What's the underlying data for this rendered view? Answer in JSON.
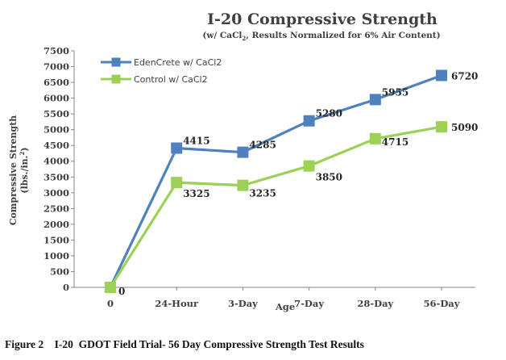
{
  "chart_data": {
    "type": "line",
    "title": "I-20 Compressive Strength",
    "subtitle_pre": "(w/ CaCl",
    "subtitle_sub": "2",
    "subtitle_post": ", Results Normalized for 6% Air Content)",
    "xlabel": "Age",
    "ylabel_line1": "Compressive Strength",
    "ylabel_line2_pre": "(lbs./in.",
    "ylabel_line2_sup": "2",
    "ylabel_line2_post": ")",
    "categories": [
      "0",
      "24-Hour",
      "3-Day",
      "7-Day",
      "28-Day",
      "56-Day"
    ],
    "ylim": [
      0,
      7500
    ],
    "ytick_step": 500,
    "yticks": [
      "0",
      "500",
      "1000",
      "1500",
      "2000",
      "2500",
      "3000",
      "3500",
      "4000",
      "4500",
      "5000",
      "5500",
      "6000",
      "6500",
      "7000",
      "7500"
    ],
    "grid": false,
    "legend_position": "top-left",
    "series": [
      {
        "name": "EdenCrete w/ CaCl2",
        "color": "#4F81BD",
        "values": [
          0,
          4415,
          4285,
          5280,
          5955,
          6720
        ],
        "labels": [
          "",
          "4415",
          "4285",
          "5280",
          "5955",
          "6720"
        ]
      },
      {
        "name": "Control w/ CaCl2",
        "color": "#9BD155",
        "values": [
          0,
          3325,
          3235,
          3850,
          4715,
          5090
        ],
        "labels": [
          "0",
          "3325",
          "3235",
          "3850",
          "4715",
          "5090"
        ]
      }
    ]
  },
  "caption": {
    "figure": "Figure 2",
    "text": "I-20  GDOT Field Trial- 56 Day Compressive Strength Test Results"
  }
}
